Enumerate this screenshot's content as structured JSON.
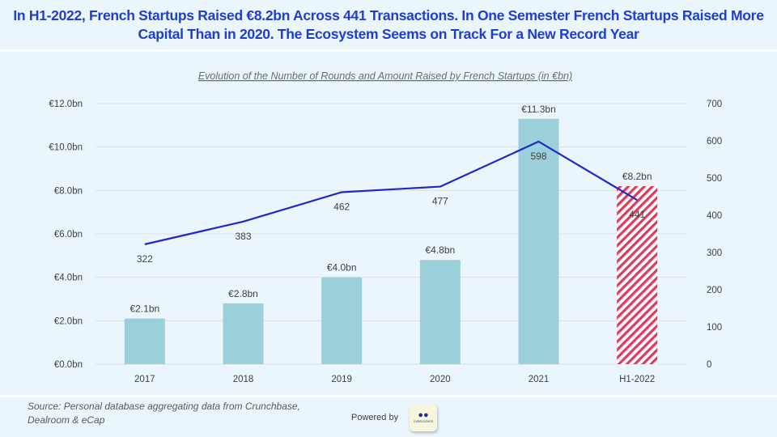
{
  "header": {
    "title": "In H1-2022, French Startups Raised €8.2bn Across 441 Transactions. In One Semester French Startups Raised More Capital Than in 2020. The Ecosystem Seems on Track For a New Record Year"
  },
  "footer": {
    "source": "Source: Personal database aggregating data from Crunchbase, Dealroom & eCap",
    "powered_by": "Powered by",
    "logo_icon": "binoculars-icon",
    "logo_text": "OVERLOOKED"
  },
  "colors": {
    "title": "#1f3ecf",
    "bar": "#9bd0da",
    "hatch": "#e0395c",
    "line": "#2028c8",
    "background": "#eaf6fc",
    "grid": "#dcdfe3"
  },
  "chart_data": {
    "type": "bar",
    "title": "Evolution of the Number of Rounds and Amount Raised by French Startups (in €bn)",
    "categories": [
      "2017",
      "2018",
      "2019",
      "2020",
      "2021",
      "H1-2022"
    ],
    "series": [
      {
        "name": "Amount Raised (€bn)",
        "type": "bar",
        "axis": "left",
        "values": [
          2.1,
          2.8,
          4.0,
          4.8,
          11.3,
          8.2
        ],
        "labels": [
          "€2.1bn",
          "€2.8bn",
          "€4.0bn",
          "€4.8bn",
          "€11.3bn",
          "€8.2bn"
        ],
        "hatched": [
          false,
          false,
          false,
          false,
          false,
          true
        ]
      },
      {
        "name": "Number of Rounds",
        "type": "line",
        "axis": "right",
        "values": [
          322,
          383,
          462,
          477,
          598,
          441
        ],
        "labels": [
          "322",
          "383",
          "462",
          "477",
          "598",
          "441"
        ]
      }
    ],
    "y_left": {
      "range": [
        0,
        12
      ],
      "ticks": [
        0,
        2,
        4,
        6,
        8,
        10,
        12
      ],
      "tick_labels": [
        "€0.0bn",
        "€2.0bn",
        "€4.0bn",
        "€6.0bn",
        "€8.0bn",
        "€10.0bn",
        "€12.0bn"
      ]
    },
    "y_right": {
      "range": [
        0,
        700
      ],
      "ticks": [
        0,
        100,
        200,
        300,
        400,
        500,
        600,
        700
      ],
      "tick_labels": [
        "0",
        "100",
        "200",
        "300",
        "400",
        "500",
        "600",
        "700"
      ]
    },
    "xlabel": "",
    "grid": true,
    "legend": "none"
  }
}
